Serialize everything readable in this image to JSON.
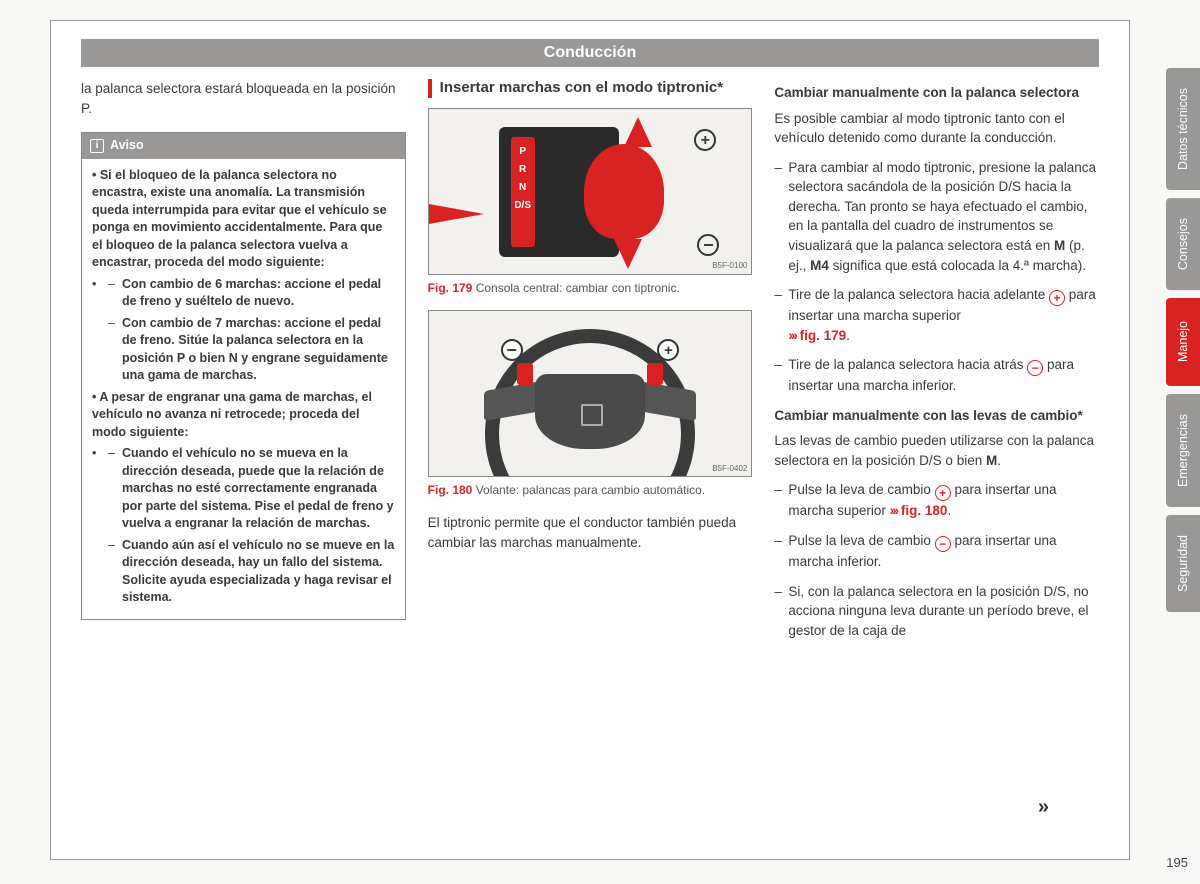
{
  "header": {
    "title": "Conducción"
  },
  "col1": {
    "intro": "la palanca selectora estará bloqueada en la posición P.",
    "aviso_label": "Aviso",
    "b1": "• Si el bloqueo de la palanca selectora no encastra, existe una anomalía. La transmisión queda interrumpida para evitar que el vehículo se ponga en movimiento accidentalmente. Para que el bloqueo de la palanca selectora vuelva a encastrar, proceda del modo siguiente:",
    "b1a": "Con cambio de 6 marchas: accione el pedal de freno y suéltelo de nuevo.",
    "b1b": "Con cambio de 7 marchas: accione el pedal de freno. Sitúe la palanca selectora en la posición P o bien N y engrane seguidamente una gama de marchas.",
    "b2": "• A pesar de engranar una gama de marchas, el vehículo no avanza ni retrocede; proceda del modo siguiente:",
    "b2a": "Cuando el vehículo no se mueva en la dirección deseada, puede que la relación de marchas no esté correctamente engranada por parte del sistema. Pise el pedal de freno y vuelva a engranar la relación de marchas.",
    "b2b": "Cuando aún así el vehículo no se mueve en la dirección deseada, hay un fallo del sistema. Solicite ayuda especializada y haga revisar el sistema."
  },
  "col2": {
    "title": "Insertar marchas con el modo tiptronic*",
    "fig179_label": "Fig. 179",
    "fig179_caption": "Consola central: cambiar con tiptronic.",
    "fig179_imgid": "B5F-0100",
    "gear_p": "P",
    "gear_r": "R",
    "gear_n": "N",
    "gear_ds": "D/S",
    "fig180_label": "Fig. 180",
    "fig180_caption": "Volante: palancas para cambio automático.",
    "fig180_imgid": "B5F-0402",
    "para": "El tiptronic permite que el conductor también pueda cambiar las marchas manualmente."
  },
  "col3": {
    "h1": "Cambiar manualmente con la palanca selectora",
    "p1": "Es posible cambiar al modo tiptronic tanto con el vehículo detenido como durante la conducción.",
    "li1a": "Para cambiar al modo tiptronic, presione la palanca selectora sacándola de la posición D/S hacia la derecha. Tan pronto se haya efectuado el cambio, en la pantalla del cuadro de instrumentos se visualizará que la palanca selectora está en ",
    "li1b": " (p. ej., ",
    "li1c": " significa que está colocada la 4.ª marcha).",
    "m": "M",
    "m4": "M4",
    "li2a": "Tire de la palanca selectora hacia adelante ",
    "li2b": " para insertar una marcha superior ",
    "fig179ref": "fig. 179",
    "li3a": "Tire de la palanca selectora hacia atrás ",
    "li3b": " para insertar una marcha inferior.",
    "h2": "Cambiar manualmente con las levas de cambio*",
    "p2a": "Las levas de cambio pueden utilizarse con la palanca selectora en la posición D/S o bien ",
    "p2b": ".",
    "li4a": "Pulse la leva de cambio ",
    "li4b": " para insertar una marcha superior ",
    "fig180ref": "fig. 180",
    "li5a": "Pulse la leva de cambio ",
    "li5b": " para insertar una marcha inferior.",
    "li6": "Si, con la palanca selectora en la posición D/S, no acciona ninguna leva durante un período breve, el gestor de la caja de"
  },
  "tabs": {
    "t1": "Datos técnicos",
    "t2": "Consejos",
    "t3": "Manejo",
    "t4": "Emergencias",
    "t5": "Seguridad"
  },
  "page": "195",
  "cont": "»",
  "colors": {
    "accent": "#d92323",
    "tab_grey": "#999896"
  }
}
